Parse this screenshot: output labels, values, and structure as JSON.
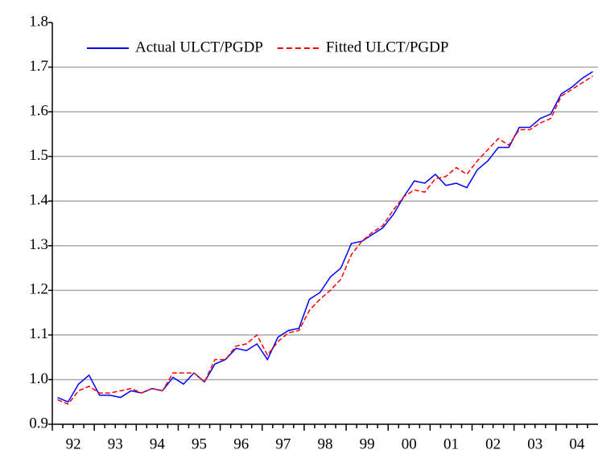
{
  "chart_data": {
    "type": "line",
    "categories": [
      "92",
      null,
      null,
      null,
      "93",
      null,
      null,
      null,
      "94",
      null,
      null,
      null,
      "95",
      null,
      null,
      null,
      "96",
      null,
      null,
      null,
      "97",
      null,
      null,
      null,
      "98",
      null,
      null,
      null,
      "99",
      null,
      null,
      null,
      "00",
      null,
      null,
      null,
      "01",
      null,
      null,
      null,
      "02",
      null,
      null,
      null,
      "03",
      null,
      null,
      null,
      "04",
      null,
      null,
      null
    ],
    "series": [
      {
        "name": "Actual ULCT/PGDP",
        "color": "#0000ff",
        "dash": "solid",
        "values": [
          0.96,
          0.95,
          0.99,
          1.01,
          0.965,
          0.965,
          0.96,
          0.975,
          0.97,
          0.98,
          0.975,
          1.005,
          0.99,
          1.015,
          0.995,
          1.035,
          1.045,
          1.07,
          1.065,
          1.08,
          1.045,
          1.095,
          1.11,
          1.115,
          1.18,
          1.195,
          1.23,
          1.25,
          1.305,
          1.31,
          1.325,
          1.34,
          1.37,
          1.41,
          1.445,
          1.44,
          1.46,
          1.435,
          1.44,
          1.43,
          1.47,
          1.49,
          1.52,
          1.52,
          1.565,
          1.565,
          1.585,
          1.595,
          1.64,
          1.655,
          1.675,
          1.69
        ]
      },
      {
        "name": "Fitted ULCT/PGDP",
        "color": "#ff0000",
        "dash": "dashed",
        "values": [
          0.955,
          0.945,
          0.975,
          0.985,
          0.97,
          0.97,
          0.975,
          0.98,
          0.97,
          0.98,
          0.975,
          1.015,
          1.015,
          1.015,
          0.995,
          1.045,
          1.045,
          1.075,
          1.08,
          1.1,
          1.055,
          1.085,
          1.105,
          1.11,
          1.155,
          1.18,
          1.2,
          1.225,
          1.28,
          1.31,
          1.33,
          1.345,
          1.38,
          1.41,
          1.425,
          1.42,
          1.45,
          1.455,
          1.475,
          1.46,
          1.49,
          1.515,
          1.54,
          1.525,
          1.56,
          1.56,
          1.575,
          1.585,
          1.635,
          1.65,
          1.665,
          1.68
        ]
      }
    ],
    "ylim": [
      0.9,
      1.8
    ],
    "yticks": [
      0.9,
      {
        "value": 1,
        "label": "1.0"
      },
      1.1,
      1.2,
      1.3,
      1.4,
      1.5,
      1.6,
      1.7,
      1.8
    ],
    "grid": true,
    "legend": "top"
  }
}
